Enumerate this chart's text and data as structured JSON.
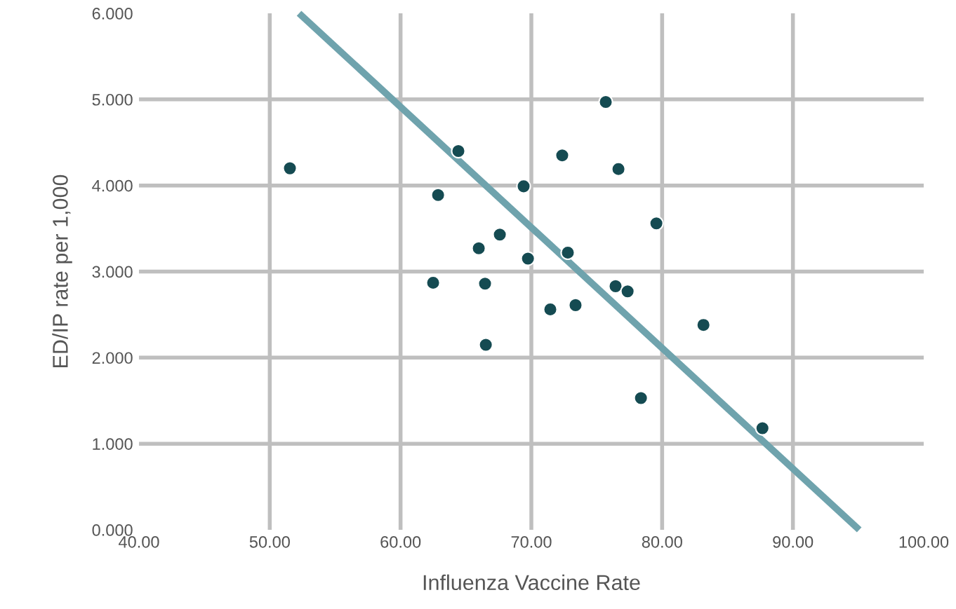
{
  "chart_data": {
    "type": "scatter",
    "xlabel": "Influenza Vaccine Rate",
    "ylabel": "ED/IP rate per 1,000",
    "xlim": [
      40,
      100
    ],
    "ylim": [
      0,
      6
    ],
    "xticks": [
      {
        "value": 40,
        "label": "40.00"
      },
      {
        "value": 50,
        "label": "50.00"
      },
      {
        "value": 60,
        "label": "60.00"
      },
      {
        "value": 70,
        "label": "70.00"
      },
      {
        "value": 80,
        "label": "80.00"
      },
      {
        "value": 90,
        "label": "90.00"
      },
      {
        "value": 100,
        "label": "100.00"
      }
    ],
    "yticks": [
      {
        "value": 0,
        "label": "0.000"
      },
      {
        "value": 1,
        "label": "1.000"
      },
      {
        "value": 2,
        "label": "2.000"
      },
      {
        "value": 3,
        "label": "3.000"
      },
      {
        "value": 4,
        "label": "4.000"
      },
      {
        "value": 5,
        "label": "5.000"
      },
      {
        "value": 6,
        "label": "6.000"
      }
    ],
    "grid": true,
    "marker": "circle",
    "series": [
      {
        "type": "line",
        "marker": "none",
        "color": "#6fa3ad",
        "x": [
          52.24,
          95.07
        ],
        "values": [
          6.0,
          0.0
        ]
      },
      {
        "color": "#154b52",
        "x": [
          51.54,
          64.42,
          62.87,
          65.98,
          67.59,
          69.41,
          69.74,
          62.49,
          66.46,
          66.52,
          71.45,
          72.36,
          72.79,
          73.38,
          75.69,
          76.66,
          76.44,
          77.36,
          78.38,
          79.56,
          83.16,
          87.67
        ],
        "values": [
          4.2,
          4.4,
          3.89,
          3.27,
          3.43,
          3.99,
          3.15,
          2.87,
          2.86,
          2.15,
          2.56,
          4.35,
          3.22,
          2.61,
          4.97,
          4.19,
          2.83,
          2.77,
          1.53,
          3.56,
          2.38,
          1.18
        ]
      }
    ]
  }
}
